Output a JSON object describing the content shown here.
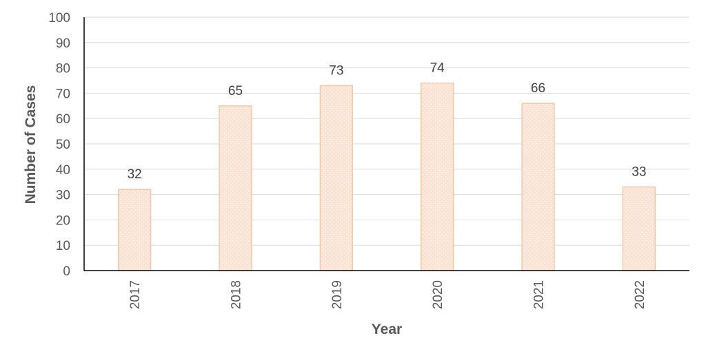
{
  "chart_data": {
    "type": "bar",
    "categories": [
      "2017",
      "2018",
      "2019",
      "2020",
      "2021",
      "2022"
    ],
    "values": [
      32,
      65,
      73,
      74,
      66,
      33
    ],
    "data_labels": [
      "32",
      "65",
      "73",
      "74",
      "66",
      "33"
    ],
    "title": "",
    "xlabel": "Year",
    "ylabel": "Number of Cases",
    "ylim": [
      0,
      100
    ],
    "yticks": [
      "0",
      "10",
      "20",
      "30",
      "40",
      "50",
      "60",
      "70",
      "80",
      "90",
      "100"
    ],
    "grid": true,
    "legend": "none",
    "colors": {
      "bar_fill": "#fbe3d3",
      "bar_stroke": "#f6c7a6",
      "bar_dot": "#ffffff",
      "grid": "#d9d9d9",
      "axis": "#000000"
    }
  }
}
